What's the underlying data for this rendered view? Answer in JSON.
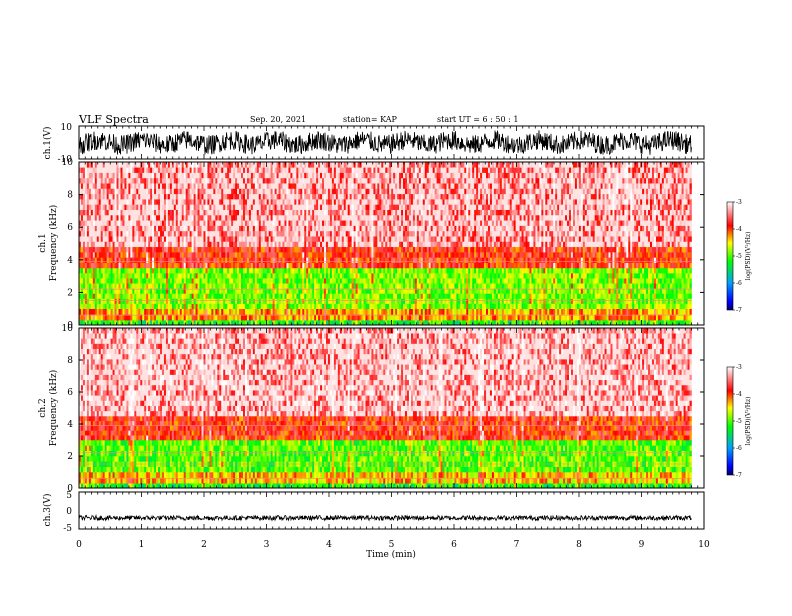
{
  "header": {
    "title": "VLF Spectra",
    "date": "Sep. 20, 2021",
    "station": "station= KAP",
    "start": "start  UT =   6  : 50 : 1"
  },
  "chart_data": [
    {
      "type": "line",
      "name": "ch1-waveform",
      "ylabel": "ch.1(V)",
      "xlim": [
        0,
        10
      ],
      "ylim": [
        -10,
        10
      ],
      "yticks": [
        "10",
        "-10"
      ],
      "data_end_min": 9.8,
      "note_values": "dense noisy waveform spanning roughly -6 to +6 V"
    },
    {
      "type": "heatmap",
      "name": "ch1-spectrogram",
      "ylabel": "ch.1\nFrequency (kHz)",
      "ylabel_line1": "ch.1",
      "ylabel_line2": "Frequency  (kHz)",
      "xlim": [
        0,
        10
      ],
      "ylim": [
        0,
        10
      ],
      "yticks": [
        "0",
        "2",
        "4",
        "6",
        "8",
        "10"
      ],
      "bands_khz": [
        {
          "from": 0,
          "to": 0.3,
          "level": -5.2
        },
        {
          "from": 0.3,
          "to": 1.0,
          "level": -4.3
        },
        {
          "from": 1.0,
          "to": 3.5,
          "level": -4.9
        },
        {
          "from": 3.5,
          "to": 4.8,
          "level": -3.9
        },
        {
          "from": 4.8,
          "to": 10,
          "level": -3.5
        }
      ]
    },
    {
      "type": "heatmap",
      "name": "ch2-spectrogram",
      "ylabel_line1": "ch.2",
      "ylabel_line2": "Frequency  (kHz)",
      "xlim": [
        0,
        10
      ],
      "ylim": [
        0,
        10
      ],
      "yticks": [
        "0",
        "2",
        "4",
        "6",
        "8",
        "10"
      ],
      "bands_khz": [
        {
          "from": 0,
          "to": 0.3,
          "level": -5.2
        },
        {
          "from": 0.3,
          "to": 1.0,
          "level": -4.4
        },
        {
          "from": 1.0,
          "to": 3.0,
          "level": -5.0
        },
        {
          "from": 3.0,
          "to": 4.5,
          "level": -3.9
        },
        {
          "from": 4.5,
          "to": 10,
          "level": -3.4
        }
      ]
    },
    {
      "type": "line",
      "name": "ch3-waveform",
      "ylabel": "ch.3(V)",
      "xlim": [
        0,
        10
      ],
      "ylim": [
        -5,
        5
      ],
      "yticks": [
        "5",
        "0",
        "-5"
      ],
      "data_end_min": 9.8,
      "note_values": "narrow band near -2 V"
    }
  ],
  "x_axis": {
    "label": "Time  (min)",
    "ticks": [
      "0",
      "1",
      "2",
      "3",
      "4",
      "5",
      "6",
      "7",
      "8",
      "9",
      "10"
    ]
  },
  "colorbar": {
    "label": "log(PSD)(V²/Hz)",
    "range": [
      -7,
      -3
    ],
    "ticks": [
      "-3",
      "-4",
      "-5",
      "-6",
      "-7"
    ],
    "colors": [
      "#000066",
      "#0000ff",
      "#00a0ff",
      "#00ff00",
      "#ffff00",
      "#ff0000",
      "#ffffff"
    ]
  }
}
